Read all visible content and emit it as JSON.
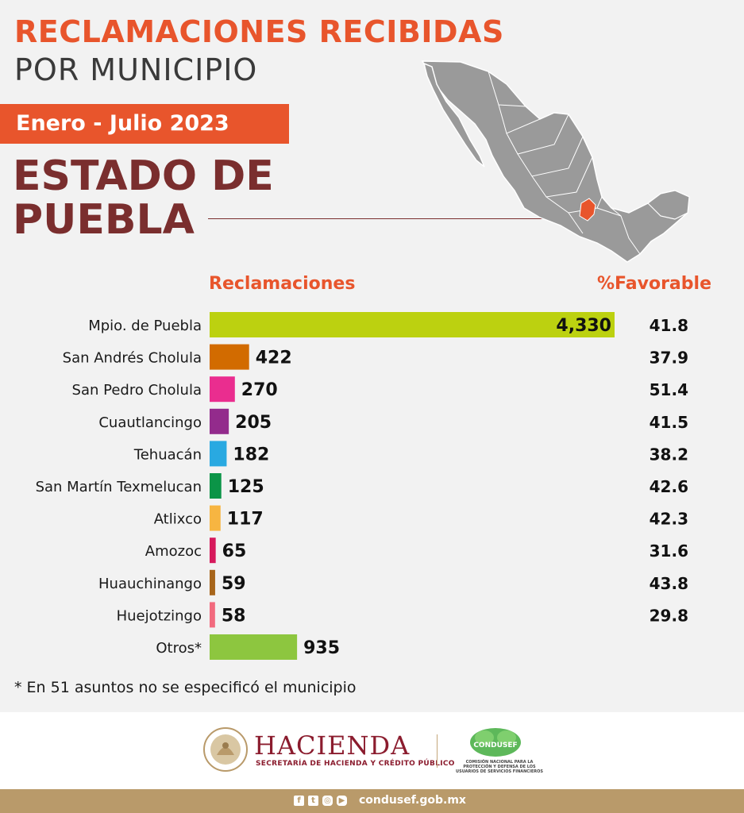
{
  "header": {
    "title_line1": "RECLAMACIONES RECIBIDAS",
    "title_line2": "POR MUNICIPIO",
    "period": "Enero - Julio 2023",
    "state_line1": "ESTADO DE",
    "state_line2": "PUEBLA"
  },
  "map": {
    "base_color": "#9a9a9a",
    "highlight_color": "#e8552c"
  },
  "chart_data": {
    "type": "bar",
    "orientation": "horizontal",
    "value_header": "Reclamaciones",
    "secondary_header": "%Favorable",
    "categories": [
      "Mpio. de Puebla",
      "San Andrés Cholula",
      "San Pedro Cholula",
      "Cuautlancingo",
      "Tehuacán",
      "San Martín Texmelucan",
      "Atlixco",
      "Amozoc",
      "Huauchinango",
      "Huejotzingo",
      "Otros*"
    ],
    "value_labels": [
      "4,330",
      "422",
      "270",
      "205",
      "182",
      "125",
      "117",
      "65",
      "59",
      "58",
      "935"
    ],
    "values": [
      4330,
      422,
      270,
      205,
      182,
      125,
      117,
      65,
      59,
      58,
      935
    ],
    "favorable_pct": [
      "41.8",
      "37.9",
      "51.4",
      "41.5",
      "38.2",
      "42.6",
      "42.3",
      "31.6",
      "43.8",
      "29.8",
      ""
    ],
    "colors": [
      "#bcd110",
      "#d26b00",
      "#ea2d8f",
      "#932b8c",
      "#29a9e1",
      "#0b9447",
      "#f7b541",
      "#d6195c",
      "#a7651b",
      "#f26a7e",
      "#8dc63f"
    ]
  },
  "footnote": "* En 51 asuntos no se especificó el municipio",
  "footer": {
    "hacienda_label": "HACIENDA",
    "hacienda_sub": "SECRETARÍA DE HACIENDA Y CRÉDITO PÚBLICO",
    "seal_text": "ESTADOS UNIDOS MEXICANOS",
    "condusef_label": "CONDUSEF",
    "condusef_sub": "COMISIÓN NACIONAL PARA LA PROTECCIÓN Y DEFENSA DE LOS USUARIOS DE SERVICIOS FINANCIEROS",
    "url": "condusef.gob.mx",
    "social_icons": [
      "facebook-icon",
      "twitter-icon",
      "instagram-icon",
      "youtube-icon"
    ],
    "brand_color": "#8b1c2e",
    "bar_color": "#b99a6a"
  }
}
